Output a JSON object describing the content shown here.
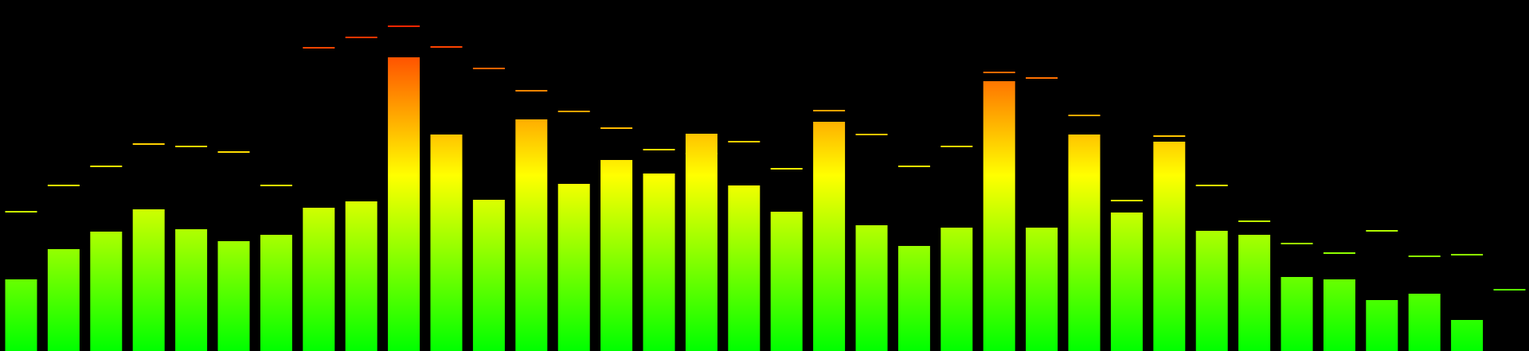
{
  "chart_data": {
    "type": "bar",
    "grid": false,
    "legend": "none",
    "ylim": [
      0,
      441
    ],
    "values": [
      90,
      128,
      150,
      178,
      153,
      138,
      146,
      180,
      188,
      369,
      272,
      190,
      291,
      210,
      240,
      223,
      273,
      208,
      175,
      288,
      158,
      132,
      155,
      339,
      155,
      272,
      174,
      263,
      151,
      146,
      93,
      90,
      64,
      72,
      39,
      0
    ],
    "peaks": [
      175,
      208,
      232,
      260,
      257,
      250,
      208,
      381,
      394,
      408,
      382,
      355,
      327,
      301,
      280,
      253,
      248,
      263,
      229,
      302,
      272,
      232,
      257,
      350,
      343,
      296,
      189,
      270,
      208,
      163,
      135,
      123,
      151,
      119,
      121,
      77
    ],
    "colors": {
      "background": "#000000",
      "gradient_bottom": "#00ff00",
      "gradient_middle": "#ffff00",
      "gradient_top": "#ff0000"
    }
  }
}
